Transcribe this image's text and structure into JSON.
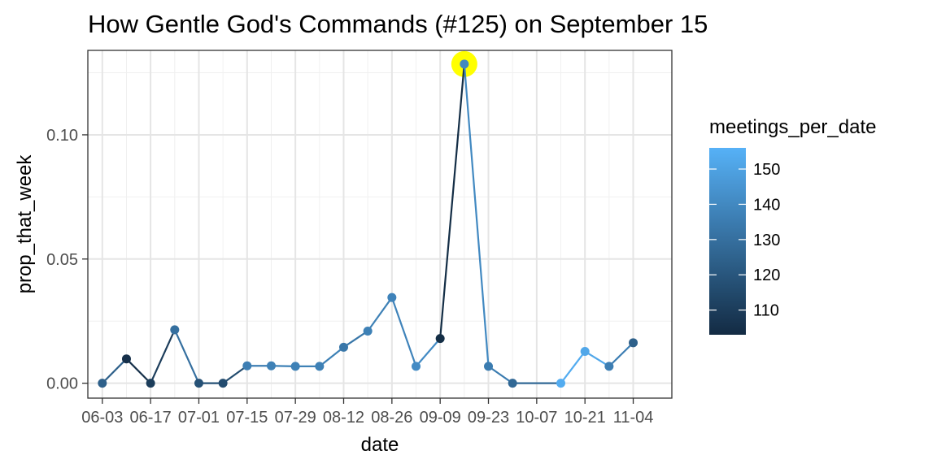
{
  "chart_data": {
    "type": "line",
    "title": "How Gentle God's Commands (#125) on September 15",
    "xlabel": "date",
    "ylabel": "prop_that_week",
    "x_tick_labels": [
      "06-03",
      "06-17",
      "07-01",
      "07-15",
      "07-29",
      "08-12",
      "08-26",
      "09-09",
      "09-23",
      "10-07",
      "10-21",
      "11-04"
    ],
    "y_ticks": [
      0.0,
      0.05,
      0.1
    ],
    "y_tick_labels": [
      "0.00",
      "0.05",
      "0.10"
    ],
    "ylim": [
      -0.006,
      0.134
    ],
    "x_range_weeks": [
      -0.6,
      23.6
    ],
    "grid": true,
    "highlight": {
      "date": "09-16",
      "color": "#ffff00"
    },
    "points": [
      {
        "date": "06-03",
        "y": 0.0,
        "meetings": 124
      },
      {
        "date": "06-10",
        "y": 0.0098,
        "meetings": 105
      },
      {
        "date": "06-17",
        "y": 0.0,
        "meetings": 110
      },
      {
        "date": "06-24",
        "y": 0.0215,
        "meetings": 130
      },
      {
        "date": "07-01",
        "y": 0.0,
        "meetings": 118
      },
      {
        "date": "07-08",
        "y": 0.0,
        "meetings": 116
      },
      {
        "date": "07-15",
        "y": 0.007,
        "meetings": 136
      },
      {
        "date": "07-22",
        "y": 0.007,
        "meetings": 137
      },
      {
        "date": "07-29",
        "y": 0.0068,
        "meetings": 137
      },
      {
        "date": "08-05",
        "y": 0.0068,
        "meetings": 137
      },
      {
        "date": "08-12",
        "y": 0.0145,
        "meetings": 133
      },
      {
        "date": "08-19",
        "y": 0.021,
        "meetings": 137
      },
      {
        "date": "08-26",
        "y": 0.0345,
        "meetings": 138
      },
      {
        "date": "09-02",
        "y": 0.0068,
        "meetings": 141
      },
      {
        "date": "09-09",
        "y": 0.018,
        "meetings": 104
      },
      {
        "date": "09-16",
        "y": 0.1285,
        "meetings": 140
      },
      {
        "date": "09-23",
        "y": 0.0068,
        "meetings": 135
      },
      {
        "date": "09-30",
        "y": 0.0,
        "meetings": 127
      },
      {
        "date": "10-14",
        "y": 0.0,
        "meetings": 154
      },
      {
        "date": "10-21",
        "y": 0.0128,
        "meetings": 152
      },
      {
        "date": "10-28",
        "y": 0.0068,
        "meetings": 136
      },
      {
        "date": "11-04",
        "y": 0.0163,
        "meetings": 124
      }
    ],
    "legend": {
      "title": "meetings_per_date",
      "placement": "right",
      "ticks": [
        110,
        120,
        130,
        140,
        150
      ],
      "range": [
        103,
        156
      ],
      "color_low": "#132b43",
      "color_high": "#56b1f7"
    }
  }
}
